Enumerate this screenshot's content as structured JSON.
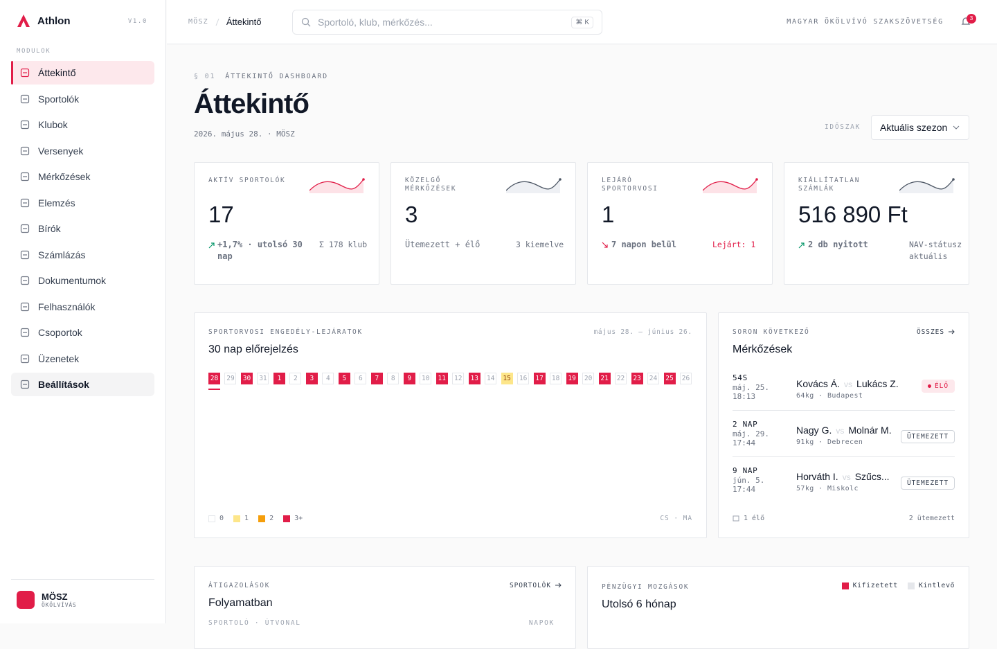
{
  "sidebar": {
    "brand": "Athlon",
    "version": "V1.0",
    "section": "MODULOK",
    "nav": [
      "Áttekintő",
      "Sportolók",
      "Klubok",
      "Versenyek",
      "Mérkőzések",
      "Elemzés",
      "Bírók",
      "Számlázás",
      "Dokumentumok",
      "Felhasználók",
      "Csoportok",
      "Üzenetek",
      "Beállítások"
    ],
    "active": 0,
    "hovered": 12,
    "org": {
      "name": "MÖSZ",
      "sub": "ÖKÖLVÍVÁS"
    }
  },
  "topbar": {
    "breadcrumb": [
      "MÖSZ",
      "Áttekintő"
    ],
    "search_placeholder": "Sportoló, klub, mérkőzés...",
    "shortcut": [
      "⌘",
      "K"
    ],
    "org": "MAGYAR ÖKÖLVÍVÓ SZAKSZÖVETSÉG",
    "notifications": 3
  },
  "header": {
    "section_no": "§ 01",
    "kicker": "ÁTTEKINTŐ DASHBOARD",
    "title": "Áttekintő",
    "date": "2026. május 28. · MÖSZ",
    "period_label": "IDŐSZAK",
    "period": "Aktuális szezon"
  },
  "kpis": [
    {
      "label": "AKTÍV SPORTOLÓK",
      "value": 17,
      "note": "+1,7% · utolsó 30 nap",
      "aside": "Σ 178 klub",
      "trend": "up",
      "accent": "red"
    },
    {
      "label": "KÖZELGŐ MÉRKŐZÉSEK",
      "value": 3,
      "note": "Ütemezett + élő",
      "aside": "3 kiemelve",
      "trend": null,
      "accent": "gray"
    },
    {
      "label": "LEJÁRÓ SPORTORVOSI",
      "value": 1,
      "note": "7 napon belül",
      "aside": "Lejárt: 1",
      "trend": "down",
      "accent": "red"
    },
    {
      "label": "KIÁLLÍTATLAN SZÁMLÁK",
      "value": "516 890 Ft",
      "note": "2 db nyitott",
      "aside": "NAV-státusz aktuális",
      "trend": "up",
      "accent": "gray"
    }
  ],
  "calendar": {
    "kicker": "SPORTORVOSI ENGEDÉLY-LEJÁRATOK",
    "title": "30 nap előrejelzés",
    "range": "május 28. – június 26.",
    "days": [
      28,
      29,
      30,
      31,
      1,
      2,
      3,
      4,
      5,
      6,
      7,
      8,
      9,
      10,
      11,
      12,
      13,
      14,
      15,
      16,
      17,
      18,
      19,
      20,
      21,
      22,
      23,
      24,
      25,
      26
    ],
    "levels": [
      3,
      0,
      3,
      0,
      3,
      0,
      3,
      0,
      3,
      0,
      3,
      0,
      3,
      0,
      3,
      0,
      3,
      0,
      1,
      0,
      3,
      0,
      3,
      0,
      3,
      0,
      3,
      0,
      3,
      0
    ],
    "today": 0,
    "legend": [
      "0",
      "1",
      "2",
      "3+"
    ],
    "footer": "CS · MA"
  },
  "matches": {
    "kicker": "SORON KÖVETKEZŐ",
    "title": "Mérkőzések",
    "link": "ÖSSZES",
    "items": [
      {
        "when": "54S",
        "date": "máj. 25.",
        "time": "18:13",
        "home": "Kovács Á.",
        "vs": "vs",
        "away": "Lukács Z.",
        "meta": "64kg · Budapest",
        "status": "ÉLŐ",
        "live": true
      },
      {
        "when": "2 NAP",
        "date": "máj. 29.",
        "time": "17:44",
        "home": "Nagy G.",
        "vs": "vs",
        "away": "Molnár M.",
        "meta": "91kg · Debrecen",
        "status": "ÜTEMEZETT",
        "live": false
      },
      {
        "when": "9 NAP",
        "date": "jún. 5.",
        "time": "17:44",
        "home": "Horváth I.",
        "vs": "vs",
        "away": "Szűcs...",
        "meta": "57kg · Miskolc",
        "status": "ÜTEMEZETT",
        "live": false
      }
    ],
    "footer_left": "1 élő",
    "footer_right": "2 ütemezett"
  },
  "transfers": {
    "kicker": "ÁTIGAZOLÁSOK",
    "title": "Folyamatban",
    "link": "SPORTOLÓK",
    "columns": [
      "SPORTOLÓ · ÚTVONAL",
      "NAPOK"
    ]
  },
  "finance": {
    "kicker": "PÉNZÜGYI MOZGÁSOK",
    "title": "Utolsó 6 hónap",
    "legend": [
      "Kifizetett",
      "Kintlevő"
    ]
  }
}
